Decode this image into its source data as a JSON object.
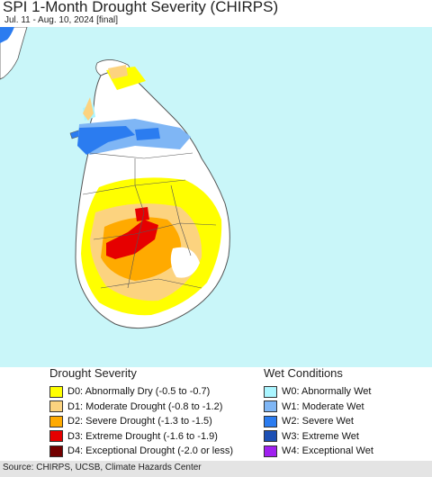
{
  "header": {
    "title": "SPI 1-Month Drought Severity (CHIRPS)",
    "subtitle": "Jul. 11 - Aug. 10, 2024 [final]"
  },
  "colors": {
    "ocean": "#c9f6f9",
    "land": "#ffffff",
    "border": "#555555",
    "D0": "#ffff00",
    "D1": "#fcd37f",
    "D2": "#ffaa00",
    "D3": "#e60000",
    "D4": "#730000",
    "W0": "#aaf5ff",
    "W1": "#7fb6f5",
    "W2": "#2b7cf0",
    "W3": "#1c4fb4",
    "W4": "#a020f0"
  },
  "legend": {
    "drought": {
      "title": "Drought Severity",
      "items": [
        {
          "code": "D0",
          "label": "D0: Abnormally Dry (-0.5 to -0.7)"
        },
        {
          "code": "D1",
          "label": "D1: Moderate Drought (-0.8 to -1.2)"
        },
        {
          "code": "D2",
          "label": "D2: Severe Drought (-1.3 to -1.5)"
        },
        {
          "code": "D3",
          "label": "D3: Extreme Drought (-1.6 to -1.9)"
        },
        {
          "code": "D4",
          "label": "D4: Exceptional Drought (-2.0 or less)"
        }
      ]
    },
    "wet": {
      "title": "Wet Conditions",
      "items": [
        {
          "code": "W0",
          "label": "W0: Abnormally Wet"
        },
        {
          "code": "W1",
          "label": "W1: Moderate Wet"
        },
        {
          "code": "W2",
          "label": "W2: Severe Wet"
        },
        {
          "code": "W3",
          "label": "W3: Extreme Wet"
        },
        {
          "code": "W4",
          "label": "W4: Exceptional Wet"
        }
      ]
    }
  },
  "footer": {
    "source": "Source: CHIRPS, UCSB, Climate Hazards Center"
  }
}
